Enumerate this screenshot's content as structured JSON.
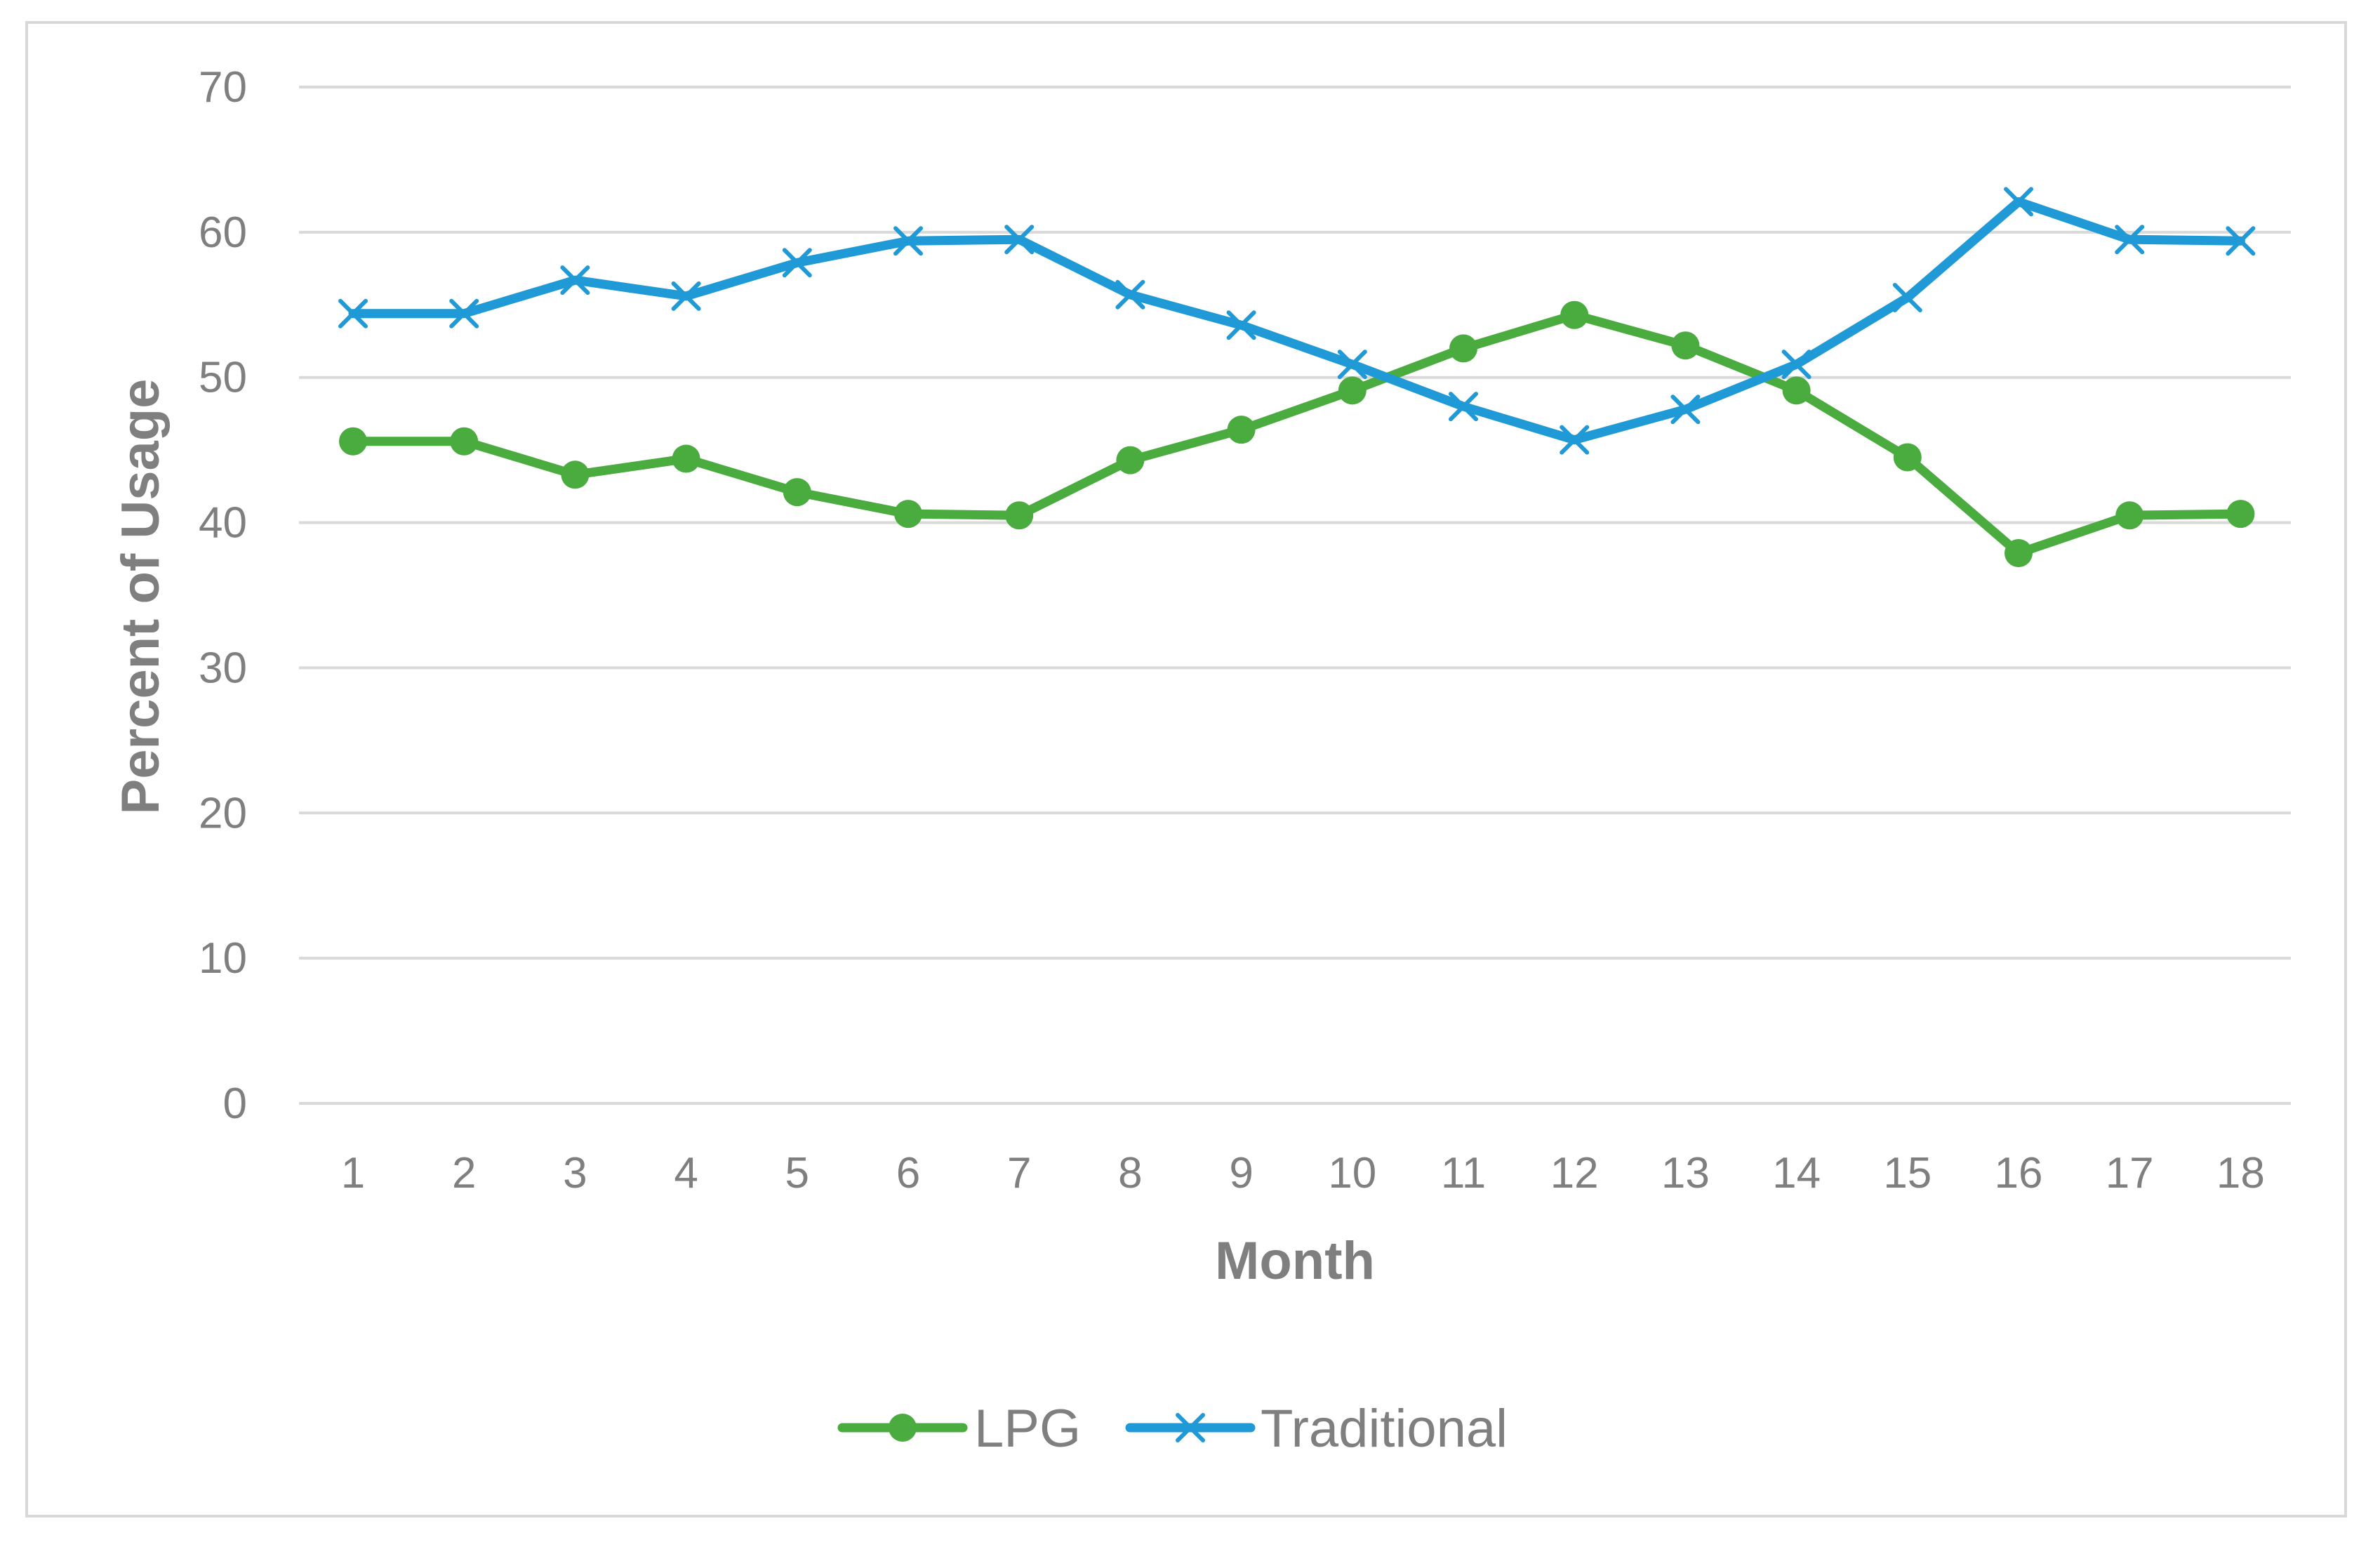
{
  "chart_data": {
    "type": "line",
    "title": "",
    "xlabel": "Month",
    "ylabel": "Percent of Usage",
    "categories": [
      "1",
      "2",
      "3",
      "4",
      "5",
      "6",
      "7",
      "8",
      "9",
      "10",
      "11",
      "12",
      "13",
      "14",
      "15",
      "16",
      "17",
      "18"
    ],
    "ylim": [
      0,
      70
    ],
    "yticks": [
      0,
      10,
      20,
      30,
      40,
      50,
      60,
      70
    ],
    "grid": true,
    "legend_position": "bottom",
    "series": [
      {
        "name": "LPG",
        "color": "#4aab3f",
        "marker": "circle",
        "values": [
          45.6,
          45.6,
          43.3,
          44.4,
          42.1,
          40.6,
          40.5,
          44.3,
          46.4,
          49.1,
          52.0,
          54.3,
          52.2,
          49.1,
          44.5,
          37.9,
          40.5,
          40.6
        ]
      },
      {
        "name": "Traditional",
        "color": "#1f9ad6",
        "marker": "x",
        "values": [
          54.4,
          54.4,
          56.7,
          55.6,
          57.9,
          59.4,
          59.5,
          55.7,
          53.6,
          50.9,
          48.0,
          45.7,
          47.8,
          50.9,
          55.5,
          62.1,
          59.5,
          59.4
        ]
      }
    ],
    "colors": {
      "gridline": "#d9d9d9",
      "text": "#7f7f7f",
      "border": "#d9d9d9"
    }
  }
}
